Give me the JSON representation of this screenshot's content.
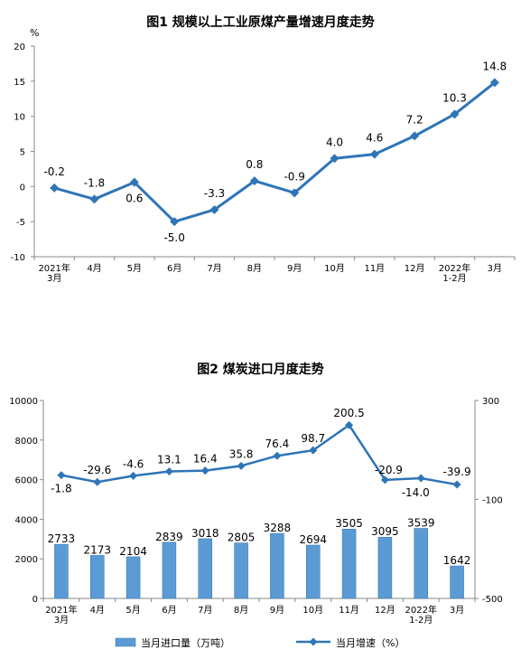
{
  "chart_data": [
    {
      "type": "line",
      "title": "图1  规模以上工业原煤产量增速月度走势",
      "ylabel": "%",
      "categories": [
        "2021年\n3月",
        "4月",
        "5月",
        "6月",
        "7月",
        "8月",
        "9月",
        "10月",
        "11月",
        "12月",
        "2022年\n1-2月",
        "3月"
      ],
      "series": [
        {
          "values": [
            -0.2,
            -1.8,
            0.6,
            -5.0,
            -3.3,
            0.8,
            -0.9,
            4.0,
            4.6,
            7.2,
            10.3,
            14.8
          ],
          "labels": [
            "-0.2",
            "-1.8",
            "0.6",
            "-5.0",
            "-3.3",
            "0.8",
            "-0.9",
            "4.0",
            "4.6",
            "7.2",
            "10.3",
            "14.8"
          ],
          "color": "#2e75b6"
        }
      ],
      "ylim": [
        -10,
        20
      ],
      "yticks": [
        -10,
        -5,
        0,
        5,
        10,
        15,
        20
      ],
      "grid": false,
      "legend": "none"
    },
    {
      "type": "bar",
      "title": "图2  煤炭进口月度走势",
      "categories": [
        "2021年\n3月",
        "4月",
        "5月",
        "6月",
        "7月",
        "8月",
        "9月",
        "10月",
        "11月",
        "12月",
        "2022年\n1-2月",
        "3月"
      ],
      "series": [
        {
          "name": "当月进口量（万吨）",
          "type": "bar",
          "axis": "left",
          "values": [
            2733,
            2173,
            2104,
            2839,
            3018,
            2805,
            3288,
            2694,
            3505,
            3095,
            3539,
            1642
          ],
          "labels": [
            "2733",
            "2173",
            "2104",
            "2839",
            "3018",
            "2805",
            "3288",
            "2694",
            "3505",
            "3095",
            "3539",
            "1642"
          ],
          "color": "#5b9bd5"
        },
        {
          "name": "当月增速（%）",
          "type": "line",
          "axis": "right",
          "values": [
            -1.8,
            -29.6,
            -4.6,
            13.1,
            16.4,
            35.8,
            76.4,
            98.7,
            200.5,
            -20.9,
            -14.0,
            -39.9
          ],
          "labels": [
            "-1.8",
            "-29.6",
            "-4.6",
            "13.1",
            "16.4",
            "35.8",
            "76.4",
            "98.7",
            "200.5",
            "-20.9",
            "-14.0",
            "-39.9"
          ],
          "color": "#2e75b6"
        }
      ],
      "ylim_left": [
        0,
        10000
      ],
      "yticks_left": [
        0,
        2000,
        4000,
        6000,
        8000,
        10000
      ],
      "ylim_right": [
        -500,
        300
      ],
      "yticks_right": [
        -500,
        -100,
        300
      ],
      "grid": false,
      "legend": "bottom"
    }
  ]
}
